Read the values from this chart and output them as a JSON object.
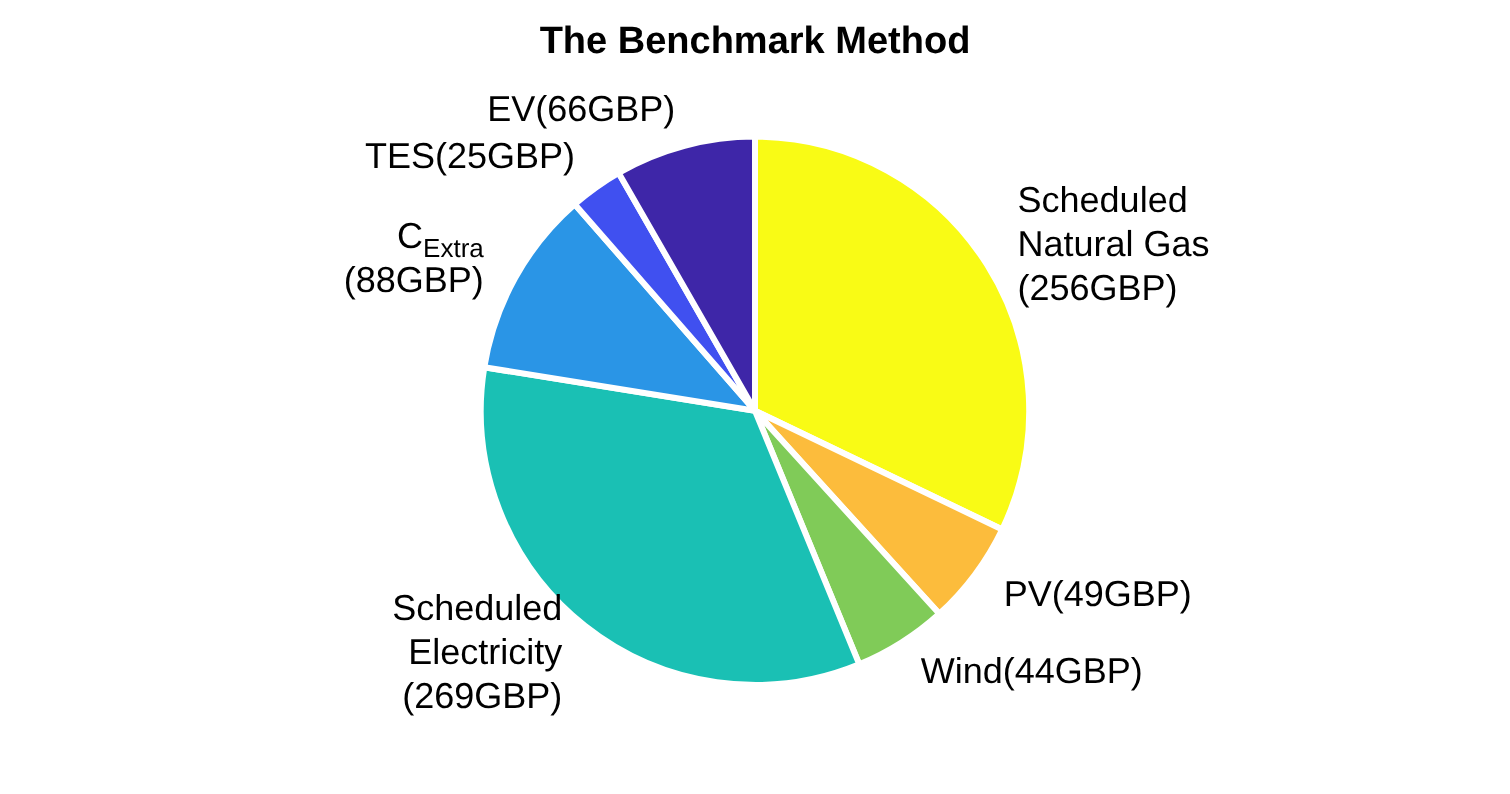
{
  "chart_data": {
    "type": "pie",
    "title": "The Benchmark Method",
    "categories": [
      "Scheduled Natural Gas (256GBP)",
      "PV(49GBP)",
      "Wind(44GBP)",
      "Scheduled Electricity (269GBP)",
      "C$_{Extra}$ (88GBP)",
      "TES(25GBP)",
      "EV(66GBP)"
    ],
    "values": [
      256,
      49,
      44,
      269,
      88,
      25,
      66
    ],
    "colors": [
      "#f9fb15",
      "#fcbc3c",
      "#80cb58",
      "#1ac0b4",
      "#2a95e6",
      "#4050f0",
      "#3e26a8"
    ],
    "legend": false
  }
}
